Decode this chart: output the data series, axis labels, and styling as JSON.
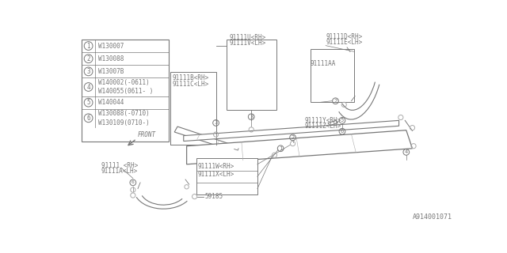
{
  "bg_color": "#ffffff",
  "part_number": "A914001071",
  "legend_rows": [
    {
      "num": "1",
      "parts": [
        "W130007"
      ]
    },
    {
      "num": "2",
      "parts": [
        "W130088"
      ]
    },
    {
      "num": "3",
      "parts": [
        "W13007B"
      ]
    },
    {
      "num": "4",
      "parts": [
        "W140002(-0611)",
        "W140055(0611- )"
      ]
    },
    {
      "num": "5",
      "parts": [
        "W140044"
      ]
    },
    {
      "num": "6",
      "parts": [
        "W130088(-0710)",
        "W130109(0710-)"
      ]
    }
  ],
  "gray": "#777777",
  "lgray": "#aaaaaa"
}
